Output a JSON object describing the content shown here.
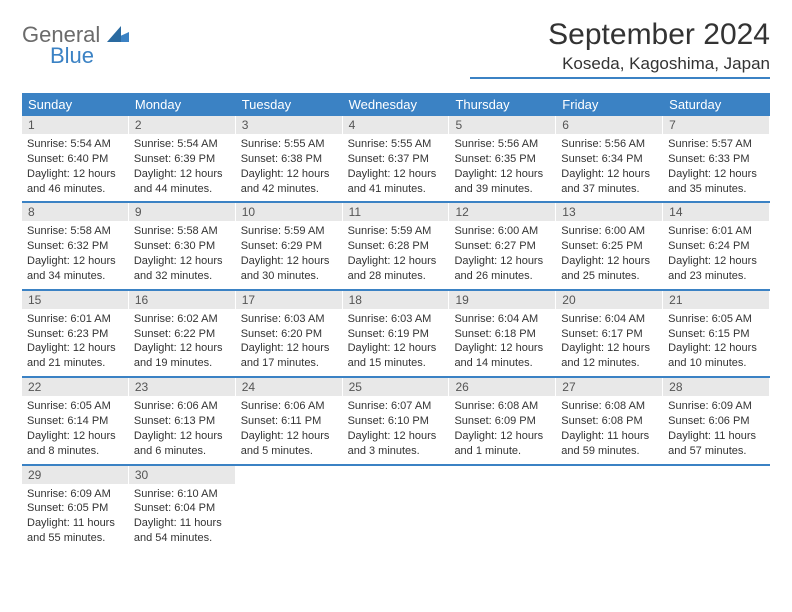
{
  "logo": {
    "general": "General",
    "blue": "Blue"
  },
  "title": "September 2024",
  "location": "Koseda, Kagoshima, Japan",
  "colors": {
    "accent": "#3b82c4",
    "daynum_bg": "#e8e8e8",
    "text": "#333333",
    "logo_gray": "#6b6b6b"
  },
  "weekdays": [
    "Sunday",
    "Monday",
    "Tuesday",
    "Wednesday",
    "Thursday",
    "Friday",
    "Saturday"
  ],
  "weeks": [
    [
      {
        "n": "1",
        "sunrise": "Sunrise: 5:54 AM",
        "sunset": "Sunset: 6:40 PM",
        "daylight": "Daylight: 12 hours and 46 minutes."
      },
      {
        "n": "2",
        "sunrise": "Sunrise: 5:54 AM",
        "sunset": "Sunset: 6:39 PM",
        "daylight": "Daylight: 12 hours and 44 minutes."
      },
      {
        "n": "3",
        "sunrise": "Sunrise: 5:55 AM",
        "sunset": "Sunset: 6:38 PM",
        "daylight": "Daylight: 12 hours and 42 minutes."
      },
      {
        "n": "4",
        "sunrise": "Sunrise: 5:55 AM",
        "sunset": "Sunset: 6:37 PM",
        "daylight": "Daylight: 12 hours and 41 minutes."
      },
      {
        "n": "5",
        "sunrise": "Sunrise: 5:56 AM",
        "sunset": "Sunset: 6:35 PM",
        "daylight": "Daylight: 12 hours and 39 minutes."
      },
      {
        "n": "6",
        "sunrise": "Sunrise: 5:56 AM",
        "sunset": "Sunset: 6:34 PM",
        "daylight": "Daylight: 12 hours and 37 minutes."
      },
      {
        "n": "7",
        "sunrise": "Sunrise: 5:57 AM",
        "sunset": "Sunset: 6:33 PM",
        "daylight": "Daylight: 12 hours and 35 minutes."
      }
    ],
    [
      {
        "n": "8",
        "sunrise": "Sunrise: 5:58 AM",
        "sunset": "Sunset: 6:32 PM",
        "daylight": "Daylight: 12 hours and 34 minutes."
      },
      {
        "n": "9",
        "sunrise": "Sunrise: 5:58 AM",
        "sunset": "Sunset: 6:30 PM",
        "daylight": "Daylight: 12 hours and 32 minutes."
      },
      {
        "n": "10",
        "sunrise": "Sunrise: 5:59 AM",
        "sunset": "Sunset: 6:29 PM",
        "daylight": "Daylight: 12 hours and 30 minutes."
      },
      {
        "n": "11",
        "sunrise": "Sunrise: 5:59 AM",
        "sunset": "Sunset: 6:28 PM",
        "daylight": "Daylight: 12 hours and 28 minutes."
      },
      {
        "n": "12",
        "sunrise": "Sunrise: 6:00 AM",
        "sunset": "Sunset: 6:27 PM",
        "daylight": "Daylight: 12 hours and 26 minutes."
      },
      {
        "n": "13",
        "sunrise": "Sunrise: 6:00 AM",
        "sunset": "Sunset: 6:25 PM",
        "daylight": "Daylight: 12 hours and 25 minutes."
      },
      {
        "n": "14",
        "sunrise": "Sunrise: 6:01 AM",
        "sunset": "Sunset: 6:24 PM",
        "daylight": "Daylight: 12 hours and 23 minutes."
      }
    ],
    [
      {
        "n": "15",
        "sunrise": "Sunrise: 6:01 AM",
        "sunset": "Sunset: 6:23 PM",
        "daylight": "Daylight: 12 hours and 21 minutes."
      },
      {
        "n": "16",
        "sunrise": "Sunrise: 6:02 AM",
        "sunset": "Sunset: 6:22 PM",
        "daylight": "Daylight: 12 hours and 19 minutes."
      },
      {
        "n": "17",
        "sunrise": "Sunrise: 6:03 AM",
        "sunset": "Sunset: 6:20 PM",
        "daylight": "Daylight: 12 hours and 17 minutes."
      },
      {
        "n": "18",
        "sunrise": "Sunrise: 6:03 AM",
        "sunset": "Sunset: 6:19 PM",
        "daylight": "Daylight: 12 hours and 15 minutes."
      },
      {
        "n": "19",
        "sunrise": "Sunrise: 6:04 AM",
        "sunset": "Sunset: 6:18 PM",
        "daylight": "Daylight: 12 hours and 14 minutes."
      },
      {
        "n": "20",
        "sunrise": "Sunrise: 6:04 AM",
        "sunset": "Sunset: 6:17 PM",
        "daylight": "Daylight: 12 hours and 12 minutes."
      },
      {
        "n": "21",
        "sunrise": "Sunrise: 6:05 AM",
        "sunset": "Sunset: 6:15 PM",
        "daylight": "Daylight: 12 hours and 10 minutes."
      }
    ],
    [
      {
        "n": "22",
        "sunrise": "Sunrise: 6:05 AM",
        "sunset": "Sunset: 6:14 PM",
        "daylight": "Daylight: 12 hours and 8 minutes."
      },
      {
        "n": "23",
        "sunrise": "Sunrise: 6:06 AM",
        "sunset": "Sunset: 6:13 PM",
        "daylight": "Daylight: 12 hours and 6 minutes."
      },
      {
        "n": "24",
        "sunrise": "Sunrise: 6:06 AM",
        "sunset": "Sunset: 6:11 PM",
        "daylight": "Daylight: 12 hours and 5 minutes."
      },
      {
        "n": "25",
        "sunrise": "Sunrise: 6:07 AM",
        "sunset": "Sunset: 6:10 PM",
        "daylight": "Daylight: 12 hours and 3 minutes."
      },
      {
        "n": "26",
        "sunrise": "Sunrise: 6:08 AM",
        "sunset": "Sunset: 6:09 PM",
        "daylight": "Daylight: 12 hours and 1 minute."
      },
      {
        "n": "27",
        "sunrise": "Sunrise: 6:08 AM",
        "sunset": "Sunset: 6:08 PM",
        "daylight": "Daylight: 11 hours and 59 minutes."
      },
      {
        "n": "28",
        "sunrise": "Sunrise: 6:09 AM",
        "sunset": "Sunset: 6:06 PM",
        "daylight": "Daylight: 11 hours and 57 minutes."
      }
    ],
    [
      {
        "n": "29",
        "sunrise": "Sunrise: 6:09 AM",
        "sunset": "Sunset: 6:05 PM",
        "daylight": "Daylight: 11 hours and 55 minutes."
      },
      {
        "n": "30",
        "sunrise": "Sunrise: 6:10 AM",
        "sunset": "Sunset: 6:04 PM",
        "daylight": "Daylight: 11 hours and 54 minutes."
      },
      null,
      null,
      null,
      null,
      null
    ]
  ]
}
